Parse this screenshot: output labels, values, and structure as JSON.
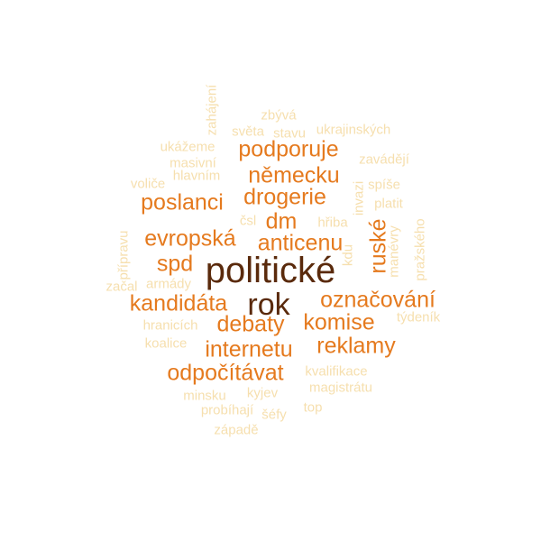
{
  "colors": {
    "largest": "#5a2a0c",
    "large": "#e57a1e",
    "medium": "#f08a24",
    "small": "#f6dfae"
  },
  "words": [
    {
      "text": "politické",
      "tier": "largest"
    },
    {
      "text": "rok",
      "tier": "largest"
    },
    {
      "text": "podporuje",
      "tier": "large"
    },
    {
      "text": "německu",
      "tier": "large"
    },
    {
      "text": "drogerie",
      "tier": "large"
    },
    {
      "text": "poslanci",
      "tier": "large"
    },
    {
      "text": "dm",
      "tier": "large"
    },
    {
      "text": "evropská",
      "tier": "large"
    },
    {
      "text": "anticenu",
      "tier": "large"
    },
    {
      "text": "ruské",
      "tier": "large"
    },
    {
      "text": "spd",
      "tier": "large"
    },
    {
      "text": "kandidáta",
      "tier": "large"
    },
    {
      "text": "označování",
      "tier": "large"
    },
    {
      "text": "debaty",
      "tier": "large"
    },
    {
      "text": "komise",
      "tier": "large"
    },
    {
      "text": "internetu",
      "tier": "large"
    },
    {
      "text": "reklamy",
      "tier": "large"
    },
    {
      "text": "odpočítávat",
      "tier": "large"
    },
    {
      "text": "zahájení",
      "tier": "small"
    },
    {
      "text": "zbývá",
      "tier": "small"
    },
    {
      "text": "světa",
      "tier": "small"
    },
    {
      "text": "stavu",
      "tier": "small"
    },
    {
      "text": "ukrajinských",
      "tier": "small"
    },
    {
      "text": "ukážeme",
      "tier": "small"
    },
    {
      "text": "masivní",
      "tier": "small"
    },
    {
      "text": "zavádějí",
      "tier": "small"
    },
    {
      "text": "hlavním",
      "tier": "small"
    },
    {
      "text": "voliče",
      "tier": "small"
    },
    {
      "text": "spíše",
      "tier": "small"
    },
    {
      "text": "invazi",
      "tier": "small"
    },
    {
      "text": "platit",
      "tier": "small"
    },
    {
      "text": "čsl",
      "tier": "small"
    },
    {
      "text": "hřiba",
      "tier": "small"
    },
    {
      "text": "přípravu",
      "tier": "small"
    },
    {
      "text": "pražského",
      "tier": "small"
    },
    {
      "text": "kdu",
      "tier": "small"
    },
    {
      "text": "manévry",
      "tier": "small"
    },
    {
      "text": "armády",
      "tier": "small"
    },
    {
      "text": "začal",
      "tier": "small"
    },
    {
      "text": "týdeník",
      "tier": "small"
    },
    {
      "text": "hranicích",
      "tier": "small"
    },
    {
      "text": "koalice",
      "tier": "small"
    },
    {
      "text": "kvalifikace",
      "tier": "small"
    },
    {
      "text": "magistrátu",
      "tier": "small"
    },
    {
      "text": "minsku",
      "tier": "small"
    },
    {
      "text": "kyjev",
      "tier": "small"
    },
    {
      "text": "probíhají",
      "tier": "small"
    },
    {
      "text": "šéfy",
      "tier": "small"
    },
    {
      "text": "top",
      "tier": "small"
    },
    {
      "text": "západě",
      "tier": "small"
    }
  ]
}
